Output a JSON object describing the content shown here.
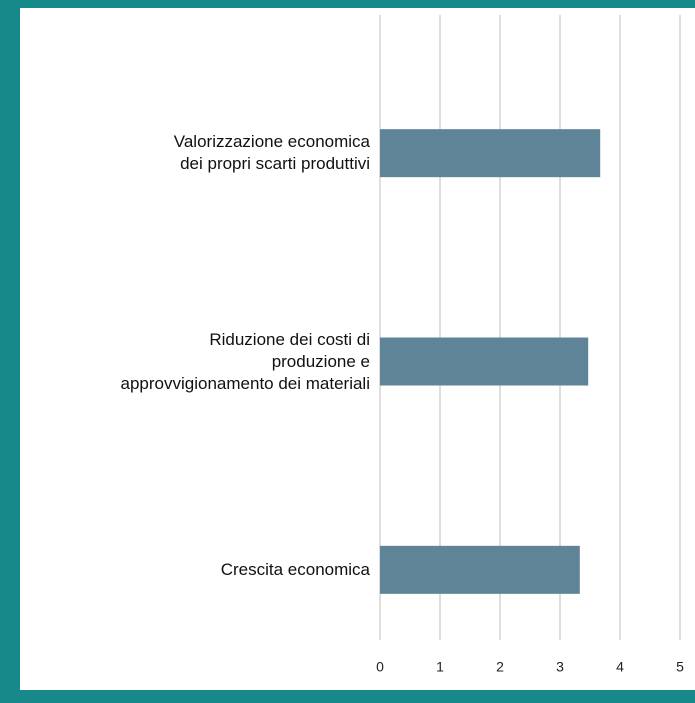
{
  "chart_data": {
    "type": "barh",
    "categories": [
      "Valorizzazione economica\ndei propri scarti produttivi",
      "Riduzione dei costi di\nproduzione e\napprovvigionamento dei materiali",
      "Crescita economica"
    ],
    "values": [
      3.67,
      3.47,
      3.33
    ],
    "color": "#5f8397",
    "xlim": [
      0,
      5
    ],
    "xticks": [
      0,
      1,
      2,
      3,
      4,
      5
    ],
    "grid": true
  }
}
